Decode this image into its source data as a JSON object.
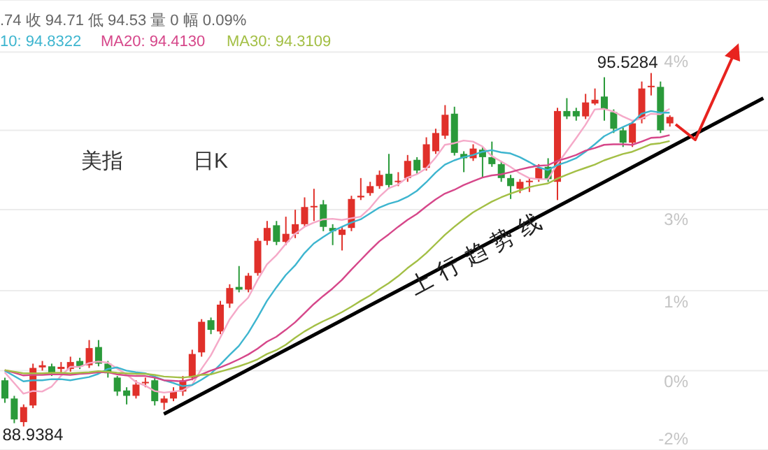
{
  "chart_data": {
    "type": "candlestick",
    "categories": [
      null,
      null,
      null,
      null,
      null,
      null,
      null,
      null,
      null,
      null,
      null,
      null,
      null,
      null,
      null,
      null,
      null,
      null,
      null,
      null,
      null,
      null,
      null,
      null,
      null,
      null,
      null,
      null,
      null,
      null,
      null,
      null,
      null,
      null,
      null,
      null,
      null,
      null,
      null,
      null,
      null,
      null,
      null,
      null,
      null,
      null,
      null,
      null,
      null,
      null,
      null,
      null,
      null,
      null,
      null,
      null,
      null,
      null,
      null,
      null,
      null,
      null,
      null,
      null,
      null,
      null,
      null,
      null,
      null,
      null,
      null,
      null,
      null,
      null,
      null,
      null,
      null,
      null,
      null,
      null,
      null,
      null
    ],
    "ohlc": [
      [
        89.8,
        89.85,
        89.38,
        89.46
      ],
      [
        89.46,
        89.51,
        89.0,
        89.07
      ],
      [
        89.02,
        89.35,
        88.9384,
        89.3
      ],
      [
        89.33,
        90.11,
        89.28,
        90.03
      ],
      [
        90.04,
        90.16,
        89.98,
        90.08
      ],
      [
        90.06,
        90.11,
        89.88,
        89.93
      ],
      [
        90.01,
        90.14,
        89.93,
        90.05
      ],
      [
        90.01,
        90.24,
        89.96,
        90.14
      ],
      [
        90.16,
        90.22,
        90.01,
        90.06
      ],
      [
        90.08,
        90.55,
        90.03,
        90.4
      ],
      [
        90.42,
        90.55,
        90.06,
        90.11
      ],
      [
        90.11,
        90.16,
        89.85,
        89.93
      ],
      [
        89.85,
        89.88,
        89.51,
        89.59
      ],
      [
        89.61,
        89.67,
        89.35,
        89.51
      ],
      [
        89.51,
        89.8,
        89.46,
        89.72
      ],
      [
        89.75,
        89.85,
        89.67,
        89.77
      ],
      [
        89.8,
        89.85,
        89.33,
        89.41
      ],
      [
        89.38,
        89.51,
        89.25,
        89.46
      ],
      [
        89.46,
        89.67,
        89.41,
        89.59
      ],
      [
        89.59,
        89.88,
        89.51,
        89.8
      ],
      [
        89.85,
        90.37,
        89.8,
        90.29
      ],
      [
        90.32,
        90.94,
        90.24,
        90.89
      ],
      [
        90.92,
        90.97,
        90.66,
        90.74
      ],
      [
        90.71,
        91.28,
        90.66,
        91.21
      ],
      [
        91.23,
        91.59,
        91.15,
        91.52
      ],
      [
        91.54,
        91.93,
        91.44,
        91.49
      ],
      [
        91.49,
        91.8,
        91.44,
        91.75
      ],
      [
        91.8,
        92.45,
        91.75,
        92.4
      ],
      [
        92.4,
        92.77,
        92.32,
        92.64
      ],
      [
        92.69,
        92.77,
        92.32,
        92.38
      ],
      [
        92.38,
        92.85,
        92.32,
        92.53
      ],
      [
        92.53,
        92.98,
        92.45,
        92.71
      ],
      [
        92.71,
        93.21,
        92.66,
        93.03
      ],
      [
        93.03,
        93.37,
        92.77,
        93.05
      ],
      [
        93.08,
        93.16,
        92.58,
        92.66
      ],
      [
        92.64,
        92.71,
        92.32,
        92.58
      ],
      [
        92.51,
        92.66,
        92.22,
        92.61
      ],
      [
        92.64,
        93.24,
        92.58,
        93.18
      ],
      [
        93.21,
        93.57,
        93.16,
        93.24
      ],
      [
        93.29,
        93.5,
        93.24,
        93.42
      ],
      [
        93.42,
        93.71,
        93.37,
        93.63
      ],
      [
        93.65,
        94.02,
        93.37,
        93.44
      ],
      [
        93.5,
        93.68,
        93.42,
        93.52
      ],
      [
        93.57,
        94.0,
        93.5,
        93.89
      ],
      [
        93.91,
        93.96,
        93.65,
        93.71
      ],
      [
        93.76,
        94.33,
        93.71,
        94.2
      ],
      [
        94.07,
        94.49,
        94.02,
        94.41
      ],
      [
        94.36,
        94.93,
        94.3,
        94.75
      ],
      [
        94.77,
        94.9,
        93.99,
        94.04
      ],
      [
        94.02,
        94.07,
        93.68,
        93.94
      ],
      [
        93.94,
        94.2,
        93.89,
        94.12
      ],
      [
        94.1,
        94.15,
        93.57,
        93.96
      ],
      [
        93.96,
        94.25,
        93.78,
        93.83
      ],
      [
        93.83,
        93.89,
        93.5,
        93.57
      ],
      [
        93.57,
        93.63,
        93.18,
        93.42
      ],
      [
        93.37,
        93.55,
        93.29,
        93.5
      ],
      [
        93.5,
        93.57,
        93.31,
        93.52
      ],
      [
        93.55,
        93.83,
        93.5,
        93.76
      ],
      [
        93.78,
        93.94,
        93.5,
        93.55
      ],
      [
        93.5,
        94.88,
        93.16,
        94.82
      ],
      [
        94.82,
        95.06,
        94.67,
        94.72
      ],
      [
        94.82,
        94.88,
        94.64,
        94.72
      ],
      [
        94.72,
        95.14,
        94.67,
        94.98
      ],
      [
        94.96,
        95.24,
        94.93,
        95.03
      ],
      [
        95.09,
        95.45,
        94.64,
        94.85
      ],
      [
        94.8,
        94.85,
        94.41,
        94.49
      ],
      [
        94.46,
        94.51,
        94.15,
        94.23
      ],
      [
        94.23,
        94.64,
        94.15,
        94.59
      ],
      [
        94.67,
        95.37,
        94.59,
        95.24
      ],
      [
        95.27,
        95.5284,
        95.11,
        95.29
      ],
      [
        95.27,
        95.37,
        94.41,
        94.46
      ],
      [
        94.59,
        94.74,
        94.53,
        94.71
      ],
      null,
      null,
      null,
      null,
      null,
      null,
      null,
      null,
      null,
      null
    ],
    "series": [
      {
        "type": "line",
        "color": "#f5a9c8",
        "values": [
          89.95,
          89.75,
          89.55,
          89.6,
          89.59,
          89.68,
          89.88,
          90.05,
          90.05,
          90.12,
          90.15,
          90.13,
          90.02,
          89.91,
          89.77,
          89.7,
          89.6,
          89.57,
          89.59,
          89.61,
          89.71,
          90.01,
          90.26,
          90.59,
          90.93,
          91.17,
          91.34,
          91.67,
          91.96,
          92.13,
          92.34,
          92.53,
          92.66,
          92.74,
          92.8,
          92.81,
          92.79,
          92.82,
          92.85,
          93.01,
          93.22,
          93.38,
          93.45,
          93.58,
          93.64,
          93.75,
          93.95,
          94.19,
          94.22,
          94.27,
          94.25,
          94.16,
          93.98,
          93.88,
          93.78,
          93.66,
          93.57,
          93.55,
          93.55,
          93.83,
          94.07,
          94.31,
          94.56,
          94.85,
          94.86,
          94.81,
          94.72,
          94.64,
          94.68,
          94.77,
          94.76,
          94.86,
          null,
          null,
          null,
          null,
          null,
          null,
          null,
          null,
          null,
          null
        ]
      },
      {
        "type": "line",
        "color": "#3db5cf",
        "values": [
          89.98,
          89.88,
          89.78,
          89.8,
          89.8,
          89.82,
          89.82,
          89.8,
          89.83,
          89.86,
          89.92,
          90.01,
          90.04,
          89.98,
          89.95,
          89.93,
          89.87,
          89.8,
          89.75,
          89.69,
          89.71,
          89.81,
          89.92,
          90.09,
          90.27,
          90.44,
          90.68,
          90.97,
          91.28,
          91.53,
          91.76,
          91.94,
          92.17,
          92.35,
          92.47,
          92.58,
          92.66,
          92.74,
          92.8,
          92.91,
          93.02,
          93.09,
          93.14,
          93.22,
          93.33,
          93.49,
          93.67,
          93.82,
          93.9,
          93.96,
          94.0,
          94.06,
          94.09,
          94.05,
          94.03,
          93.96,
          93.87,
          93.77,
          93.72,
          93.81,
          93.87,
          93.94,
          94.06,
          94.2,
          94.35,
          94.44,
          94.52,
          94.6,
          94.77,
          94.82,
          94.79,
          94.79,
          null,
          null,
          null,
          null,
          null,
          null,
          null,
          null,
          null,
          null
        ]
      },
      {
        "type": "line",
        "color": "#d6478a",
        "values": [
          89.99,
          89.94,
          89.89,
          89.9,
          89.9,
          89.91,
          89.91,
          89.9,
          89.92,
          89.93,
          89.95,
          89.95,
          89.91,
          89.89,
          89.88,
          89.88,
          89.85,
          89.8,
          89.79,
          89.78,
          89.82,
          89.91,
          89.98,
          90.04,
          90.11,
          90.19,
          90.28,
          90.39,
          90.52,
          90.61,
          90.74,
          90.88,
          91.05,
          91.22,
          91.37,
          91.51,
          91.67,
          91.86,
          92.04,
          92.22,
          92.39,
          92.52,
          92.66,
          92.79,
          92.9,
          93.04,
          93.17,
          93.28,
          93.35,
          93.44,
          93.51,
          93.58,
          93.62,
          93.64,
          93.68,
          93.73,
          93.77,
          93.8,
          93.81,
          93.89,
          93.94,
          94.0,
          94.08,
          94.13,
          94.19,
          94.2,
          94.2,
          94.19,
          94.25,
          94.32,
          94.33,
          94.37,
          null,
          null,
          null,
          null,
          null,
          null,
          null,
          null,
          null,
          null
        ]
      },
      {
        "type": "line",
        "color": "#a3bf45",
        "values": [
          89.99,
          89.96,
          89.93,
          89.93,
          89.93,
          89.94,
          89.94,
          89.93,
          89.94,
          89.95,
          89.97,
          89.96,
          89.94,
          89.93,
          89.92,
          89.92,
          89.9,
          89.87,
          89.86,
          89.85,
          89.87,
          89.9,
          89.91,
          89.96,
          90.01,
          90.06,
          90.12,
          90.19,
          90.29,
          90.36,
          90.46,
          90.59,
          90.71,
          90.81,
          90.9,
          90.98,
          91.07,
          91.17,
          91.28,
          91.38,
          91.5,
          91.61,
          91.74,
          91.89,
          92.02,
          92.17,
          92.34,
          92.51,
          92.66,
          92.8,
          92.93,
          93.03,
          93.13,
          93.21,
          93.28,
          93.34,
          93.4,
          93.44,
          93.47,
          93.56,
          93.63,
          93.7,
          93.76,
          93.82,
          93.9,
          93.96,
          94.02,
          94.06,
          94.13,
          94.2,
          94.22,
          94.26,
          null,
          null,
          null,
          null,
          null,
          null,
          null,
          null,
          null,
          null
        ]
      },
      {
        "type": "line",
        "color": "#000000",
        "values": [
          null,
          null,
          null,
          null,
          null,
          null,
          null,
          null,
          null,
          null,
          null,
          null,
          null,
          null,
          null,
          null,
          null,
          89.17,
          null,
          null,
          null,
          null,
          null,
          null,
          null,
          null,
          null,
          null,
          null,
          null,
          null,
          null,
          null,
          null,
          null,
          null,
          null,
          null,
          null,
          null,
          null,
          null,
          null,
          null,
          null,
          null,
          null,
          null,
          null,
          null,
          null,
          null,
          null,
          null,
          null,
          null,
          null,
          null,
          null,
          null,
          null,
          null,
          null,
          null,
          null,
          null,
          null,
          null,
          null,
          null,
          null,
          null,
          null,
          null,
          null,
          null,
          null,
          null,
          null,
          null,
          null,
          95.06
        ]
      }
    ],
    "ylim": [
      88.5,
      96.89
    ],
    "yticks": [
      {
        "value": 95.92,
        "label": null
      },
      {
        "value": 94.46,
        "label": null
      },
      {
        "value": 92.98,
        "label": null
      },
      {
        "value": 91.47,
        "label": null
      },
      {
        "value": 89.98,
        "label": null
      }
    ],
    "grid": "y",
    "annotations": [
      ".74 收 94.71 低 94.53 量 0 幅 0.09%",
      "10: 94.8322",
      "MA20: 94.4130",
      "MA30: 94.3109",
      "美指",
      "日K",
      "上行趋势线",
      "95.5284",
      "88.9384",
      "4%",
      "3%",
      "1%",
      "0%",
      "-2%"
    ]
  }
}
